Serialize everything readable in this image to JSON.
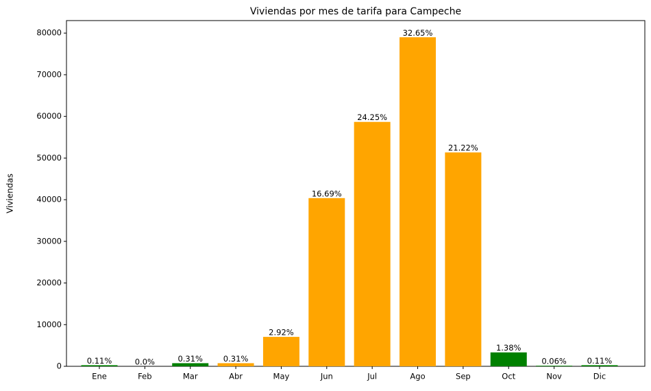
{
  "chart_data": {
    "type": "bar",
    "title": "Viviendas por mes de tarifa para Campeche",
    "y_label": "Viviendas",
    "categories": [
      "Ene",
      "Feb",
      "Mar",
      "Abr",
      "May",
      "Jun",
      "Jul",
      "Ago",
      "Sep",
      "Oct",
      "Nov",
      "Dic"
    ],
    "values": [
      266,
      0,
      750,
      750,
      7065,
      40383,
      58675,
      79000,
      51344,
      3339,
      145,
      266
    ],
    "bar_labels": [
      "0.11%",
      "0.0%",
      "0.31%",
      "0.31%",
      "2.92%",
      "16.69%",
      "24.25%",
      "32.65%",
      "21.22%",
      "1.38%",
      "0.06%",
      "0.11%"
    ],
    "colors": [
      "#008000",
      "#008000",
      "#008000",
      "#ffa500",
      "#ffa500",
      "#ffa500",
      "#ffa500",
      "#ffa500",
      "#ffa500",
      "#008000",
      "#008000",
      "#008000"
    ],
    "ylim": [
      0,
      83000
    ],
    "yticks": [
      0,
      10000,
      20000,
      30000,
      40000,
      50000,
      60000,
      70000,
      80000
    ]
  }
}
